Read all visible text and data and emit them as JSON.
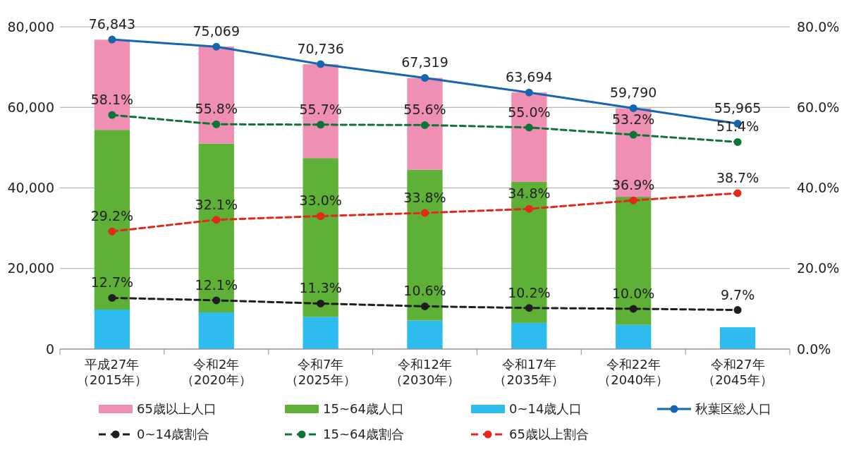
{
  "chart_data": {
    "type": "bar",
    "stacked": true,
    "categories": [
      "平成27年（2015年）",
      "令和2年（2020年）",
      "令和7年（2025年）",
      "令和12年（2030年）",
      "令和17年（2035年）",
      "令和22年（2040年）",
      "令和27年（2045年）"
    ],
    "series": [
      {
        "name": "0~14歳人口",
        "color": "#2ebcee",
        "values": [
          9800,
          9100,
          8000,
          7100,
          6500,
          6000,
          5400
        ]
      },
      {
        "name": "15~64歳人口",
        "color": "#5eb036",
        "values": [
          44600,
          41900,
          39400,
          37400,
          35000,
          31800,
          null
        ]
      },
      {
        "name": "65歳以上人口",
        "color": "#ef8fb3",
        "values": [
          22400,
          24100,
          23300,
          22800,
          22200,
          22000,
          null
        ]
      },
      {
        "name": "秋葉区総人口",
        "type": "line",
        "color": "#1565b0",
        "marker": "circle",
        "line_style": "solid",
        "values": [
          76843,
          75069,
          70736,
          67319,
          63694,
          59790,
          55965
        ],
        "value_labels": [
          "76,843",
          "75,069",
          "70,736",
          "67,319",
          "63,694",
          "59,790",
          "55,965"
        ]
      },
      {
        "name": "0~14歳割合",
        "type": "line",
        "axis": "y2",
        "color": "#1e1e1e",
        "marker": "circle",
        "line_style": "dashed",
        "values": [
          12.7,
          12.1,
          11.3,
          10.6,
          10.2,
          10.0,
          9.7
        ],
        "value_labels": [
          "12.7%",
          "12.1%",
          "11.3%",
          "10.6%",
          "10.2%",
          "10.0%",
          "9.7%"
        ]
      },
      {
        "name": "15~64歳割合",
        "type": "line",
        "axis": "y2",
        "color": "#0e7436",
        "marker": "circle",
        "line_style": "dashed",
        "values": [
          58.1,
          55.8,
          55.7,
          55.6,
          55.0,
          53.2,
          51.4
        ],
        "value_labels": [
          "58.1%",
          "55.8%",
          "55.7%",
          "55.6%",
          "55.0%",
          "53.2%",
          "51.4%"
        ]
      },
      {
        "name": "65歳以上割合",
        "type": "line",
        "axis": "y2",
        "color": "#e3281b",
        "marker": "circle",
        "line_style": "dashed",
        "values": [
          29.2,
          32.1,
          33.0,
          33.8,
          34.8,
          36.9,
          38.7
        ],
        "value_labels": [
          "29.2%",
          "32.1%",
          "33.0%",
          "33.8%",
          "34.8%",
          "36.9%",
          "38.7%"
        ]
      }
    ],
    "ylim": [
      0,
      80000
    ],
    "yticks": [
      {
        "value": 0,
        "label": "0"
      },
      {
        "value": 20000,
        "label": "20,000"
      },
      {
        "value": 40000,
        "label": "40,000"
      },
      {
        "value": 60000,
        "label": "60,000"
      },
      {
        "value": 80000,
        "label": "80,000"
      }
    ],
    "y2lim": [
      0,
      80
    ],
    "y2ticks": [
      {
        "value": 0,
        "label": "0.0%"
      },
      {
        "value": 20,
        "label": "20.0%"
      },
      {
        "value": 40,
        "label": "40.0%"
      },
      {
        "value": 60,
        "label": "60.0%"
      },
      {
        "value": 80,
        "label": "80.0%"
      }
    ],
    "grid": "y",
    "legend": "bottom"
  }
}
